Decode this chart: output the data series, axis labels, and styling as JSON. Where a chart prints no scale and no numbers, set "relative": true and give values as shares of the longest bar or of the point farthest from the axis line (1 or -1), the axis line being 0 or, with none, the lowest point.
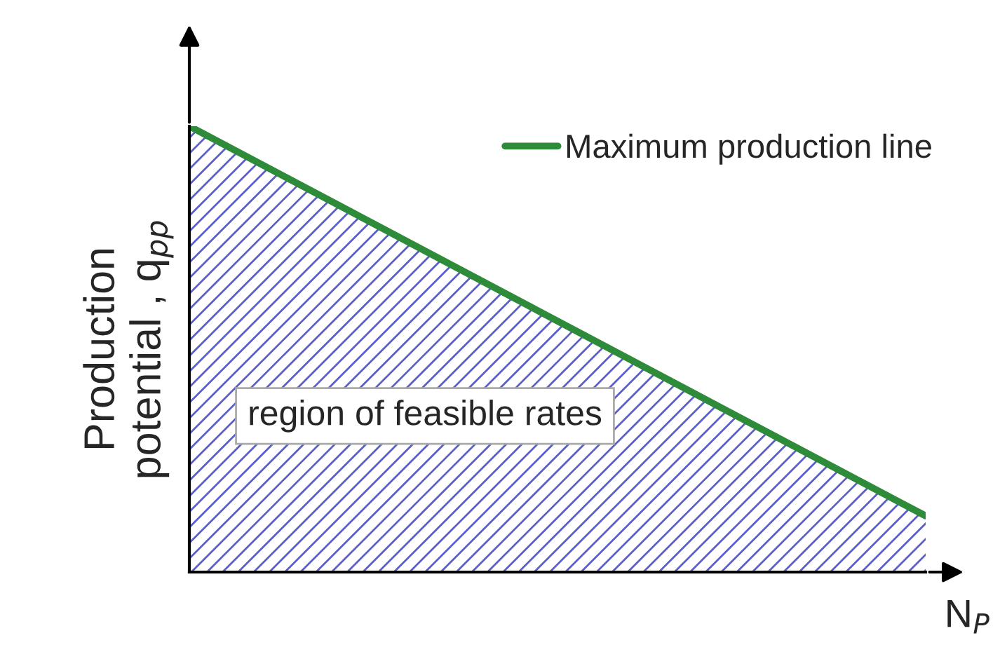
{
  "chart_data": {
    "type": "line",
    "relative": true,
    "categories": [
      null,
      null
    ],
    "xlabel": "N$_{P}$",
    "ylabel": "Production potential , q$_{pp}$",
    "series": [
      {
        "name": "Maximum production line",
        "color": "#2e8b3a",
        "values": [
          1,
          0.126
        ]
      }
    ],
    "annotations": [
      "region of feasible rates"
    ],
    "legend": "top right"
  }
}
